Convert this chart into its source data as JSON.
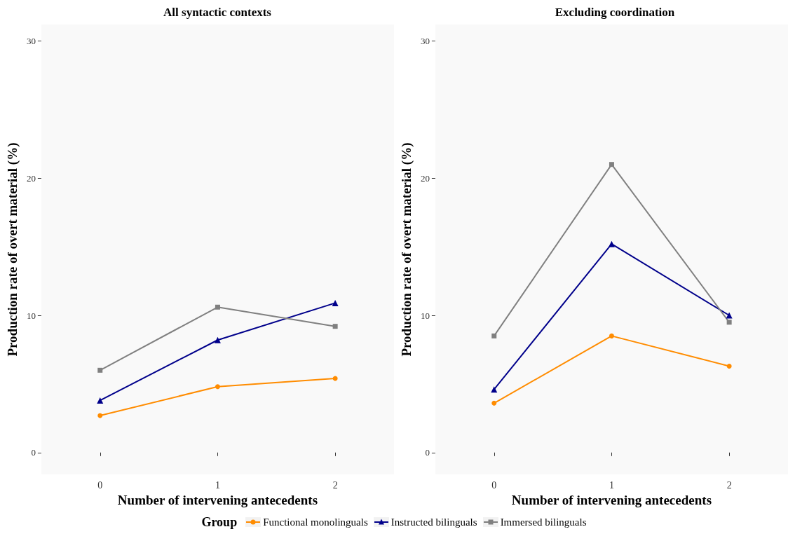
{
  "chart_data": [
    {
      "type": "line",
      "title": "All syntactic contexts",
      "xlabel": "Number of intervening antecedents",
      "ylabel": "Production rate of overt material (%)",
      "categories": [
        "0",
        "1",
        "2"
      ],
      "ylim": [
        -1.6,
        31.2
      ],
      "yticks": [
        0,
        10,
        20,
        30
      ],
      "grid": false,
      "legend": "bottom",
      "legend_title": "Group",
      "line_style": "solid",
      "series": [
        {
          "name": "Functional monolinguals",
          "color": "#ff8c00",
          "marker": "circle",
          "values": [
            2.7,
            4.8,
            5.4
          ]
        },
        {
          "name": "Instructed bilinguals",
          "color": "#00008b",
          "marker": "triangle",
          "values": [
            3.8,
            8.2,
            10.9
          ]
        },
        {
          "name": "Immersed bilinguals",
          "color": "#808080",
          "marker": "square",
          "values": [
            6.0,
            10.6,
            9.2
          ]
        }
      ]
    },
    {
      "type": "line",
      "title": "Excluding coordination",
      "xlabel": "Number of intervening antecedents",
      "ylabel": "Production rate of overt material (%)",
      "categories": [
        "0",
        "1",
        "2"
      ],
      "ylim": [
        -1.6,
        31.2
      ],
      "yticks": [
        0,
        10,
        20,
        30
      ],
      "grid": false,
      "line_style": "solid",
      "series": [
        {
          "color": "#ff8c00",
          "marker": "circle",
          "values": [
            3.6,
            8.5,
            6.3
          ]
        },
        {
          "color": "#00008b",
          "marker": "triangle",
          "values": [
            4.6,
            15.2,
            10.0
          ]
        },
        {
          "color": "#808080",
          "marker": "square",
          "values": [
            8.5,
            21.0,
            9.5
          ]
        }
      ]
    }
  ]
}
